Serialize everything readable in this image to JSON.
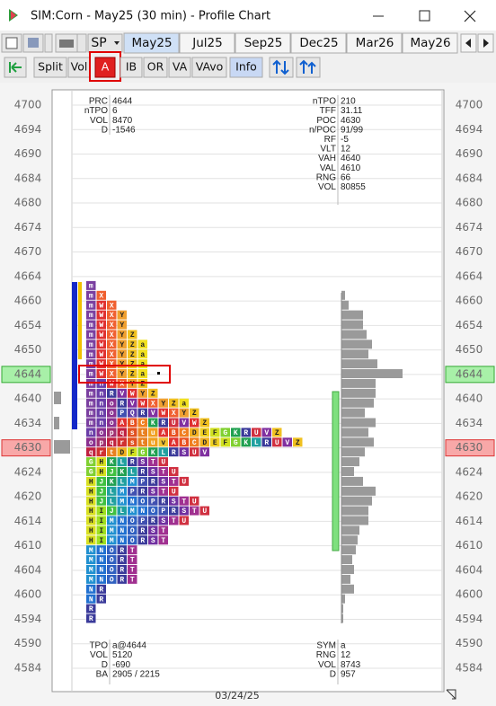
{
  "window": {
    "title": "SIM:Corn - May25 (30 min) - Profile Chart"
  },
  "toolbar": {
    "symbol_button": "SP",
    "tabs": [
      "May25",
      "Jul25",
      "Sep25",
      "Dec25",
      "Mar26",
      "May26"
    ],
    "selected_tab": "May25",
    "buttons": [
      "Split",
      "Vol",
      "A",
      "IB",
      "OR",
      "VA",
      "VAvo",
      "Info"
    ],
    "active_buttons": [
      "A",
      "Info"
    ]
  },
  "chart": {
    "price_labels": [
      4700,
      4694,
      4690,
      4684,
      4680,
      4674,
      4670,
      4664,
      4660,
      4654,
      4650,
      4644,
      4640,
      4634,
      4630,
      4624,
      4620,
      4614,
      4610,
      4604,
      4600,
      4594,
      4590,
      4584
    ],
    "date": "03/24/25",
    "info_top_left": [
      [
        "PRC",
        4644
      ],
      [
        "nTPO",
        6
      ],
      [
        "VOL",
        8470
      ],
      [
        "D",
        -1546
      ]
    ],
    "info_top_right": [
      [
        "nTPO",
        210
      ],
      [
        "TFF",
        31.11
      ],
      [
        "POC",
        4630
      ],
      [
        "n/POC",
        "91/99"
      ],
      [
        "RF",
        -5
      ],
      [
        "VLT",
        12
      ],
      [
        "VAH",
        4640
      ],
      [
        "VAL",
        4610
      ],
      [
        "RNG",
        66
      ],
      [
        "VOL",
        80855
      ]
    ],
    "info_bottom_left": [
      [
        "TPO",
        "a@4644"
      ],
      [
        "VOL",
        5120
      ],
      [
        "D",
        -690
      ],
      [
        "BA",
        "2905 / 2215"
      ]
    ],
    "info_bottom_right": [
      [
        "SYM",
        "a"
      ],
      [
        "RNG",
        12
      ],
      [
        "VOL",
        8743
      ],
      [
        "D",
        957
      ]
    ],
    "tpo_rows": [
      [
        "m"
      ],
      [
        "m",
        "X"
      ],
      [
        "m",
        "W",
        "X"
      ],
      [
        "m",
        "W",
        "X",
        "Y"
      ],
      [
        "m",
        "W",
        "X",
        "Y"
      ],
      [
        "m",
        "W",
        "X",
        "Y",
        "Z"
      ],
      [
        "m",
        "W",
        "X",
        "Y",
        "Z",
        "a"
      ],
      [
        "m",
        "W",
        "X",
        "Y",
        "Z",
        "a"
      ],
      [
        "m",
        "W",
        "X",
        "Y",
        "Z",
        "a"
      ],
      [
        "m",
        "W",
        "X",
        "Y",
        "Z",
        "a"
      ],
      [
        "m",
        "n",
        "W",
        "X",
        "Y",
        "Z"
      ],
      [
        "m",
        "n",
        "R",
        "V",
        "W",
        "Y",
        "Z"
      ],
      [
        "m",
        "n",
        "o",
        "R",
        "V",
        "W",
        "X",
        "Y",
        "Z",
        "a"
      ],
      [
        "m",
        "n",
        "o",
        "P",
        "Q",
        "R",
        "V",
        "W",
        "X",
        "Y",
        "Z"
      ],
      [
        "m",
        "n",
        "o",
        "A",
        "B",
        "C",
        "K",
        "R",
        "U",
        "V",
        "W",
        "Z"
      ],
      [
        "n",
        "o",
        "p",
        "q",
        "s",
        "t",
        "u",
        "A",
        "B",
        "C",
        "D",
        "E",
        "F",
        "G",
        "K",
        "R",
        "U",
        "V",
        "Z"
      ],
      [
        "o",
        "p",
        "q",
        "r",
        "s",
        "t",
        "u",
        "v",
        "A",
        "B",
        "C",
        "D",
        "E",
        "F",
        "G",
        "K",
        "L",
        "R",
        "U",
        "V",
        "Z"
      ],
      [
        "q",
        "r",
        "t",
        "D",
        "F",
        "G",
        "K",
        "L",
        "R",
        "S",
        "U",
        "V"
      ],
      [
        "G",
        "H",
        "K",
        "L",
        "R",
        "S",
        "T",
        "U"
      ],
      [
        "G",
        "H",
        "J",
        "K",
        "L",
        "R",
        "S",
        "T",
        "U"
      ],
      [
        "H",
        "J",
        "K",
        "L",
        "M",
        "P",
        "R",
        "S",
        "T",
        "U"
      ],
      [
        "H",
        "J",
        "L",
        "M",
        "P",
        "R",
        "S",
        "T",
        "U"
      ],
      [
        "H",
        "J",
        "L",
        "M",
        "N",
        "O",
        "P",
        "R",
        "S",
        "T",
        "U"
      ],
      [
        "H",
        "I",
        "J",
        "L",
        "M",
        "N",
        "O",
        "P",
        "R",
        "S",
        "T",
        "U"
      ],
      [
        "H",
        "I",
        "M",
        "N",
        "O",
        "P",
        "R",
        "S",
        "T",
        "U"
      ],
      [
        "H",
        "I",
        "M",
        "N",
        "O",
        "R",
        "S",
        "T"
      ],
      [
        "H",
        "I",
        "M",
        "N",
        "O",
        "R",
        "S",
        "T"
      ],
      [
        "M",
        "N",
        "O",
        "R",
        "T"
      ],
      [
        "M",
        "N",
        "O",
        "R",
        "T"
      ],
      [
        "M",
        "N",
        "O",
        "R",
        "T"
      ],
      [
        "M",
        "N",
        "O",
        "R",
        "T"
      ],
      [
        "N",
        "R"
      ],
      [
        "N",
        "R"
      ],
      [
        "R"
      ],
      [
        "R"
      ]
    ],
    "volume_profile": [
      0,
      4,
      8,
      24,
      24,
      28,
      34,
      30,
      40,
      68,
      38,
      38,
      36,
      26,
      38,
      30,
      36,
      26,
      20,
      14,
      24,
      38,
      34,
      30,
      30,
      20,
      18,
      16,
      12,
      14,
      10,
      14,
      4,
      2,
      2
    ],
    "volume_color": "#9a9a9a",
    "period_colors": {
      "m": "#7a3fa0",
      "n": "#6a3da8",
      "o": "#8a3090",
      "p": "#a03070",
      "q": "#c02040",
      "r": "#d03030",
      "s": "#e05020",
      "t": "#e88020",
      "u": "#f0a020",
      "v": "#f0c030",
      "a": "#f0e020",
      "A": "#e03030",
      "B": "#e85020",
      "C": "#f08020",
      "D": "#f0b020",
      "E": "#f0d020",
      "F": "#d0e020",
      "G": "#80d030",
      "H": "#d8e020",
      "I": "#a0e020",
      "J": "#40c040",
      "K": "#20a050",
      "L": "#20a0a0",
      "M": "#2090d0",
      "N": "#2070d0",
      "O": "#3060c0",
      "P": "#4050b0",
      "Q": "#6040a8",
      "R": "#3a3a9a",
      "S": "#7030a0",
      "T": "#a03090",
      "U": "#d03040",
      "V": "#8030a0",
      "W": "#e03030",
      "X": "#f06030",
      "Y": "#f0a030",
      "Z": "#f0c020"
    }
  }
}
